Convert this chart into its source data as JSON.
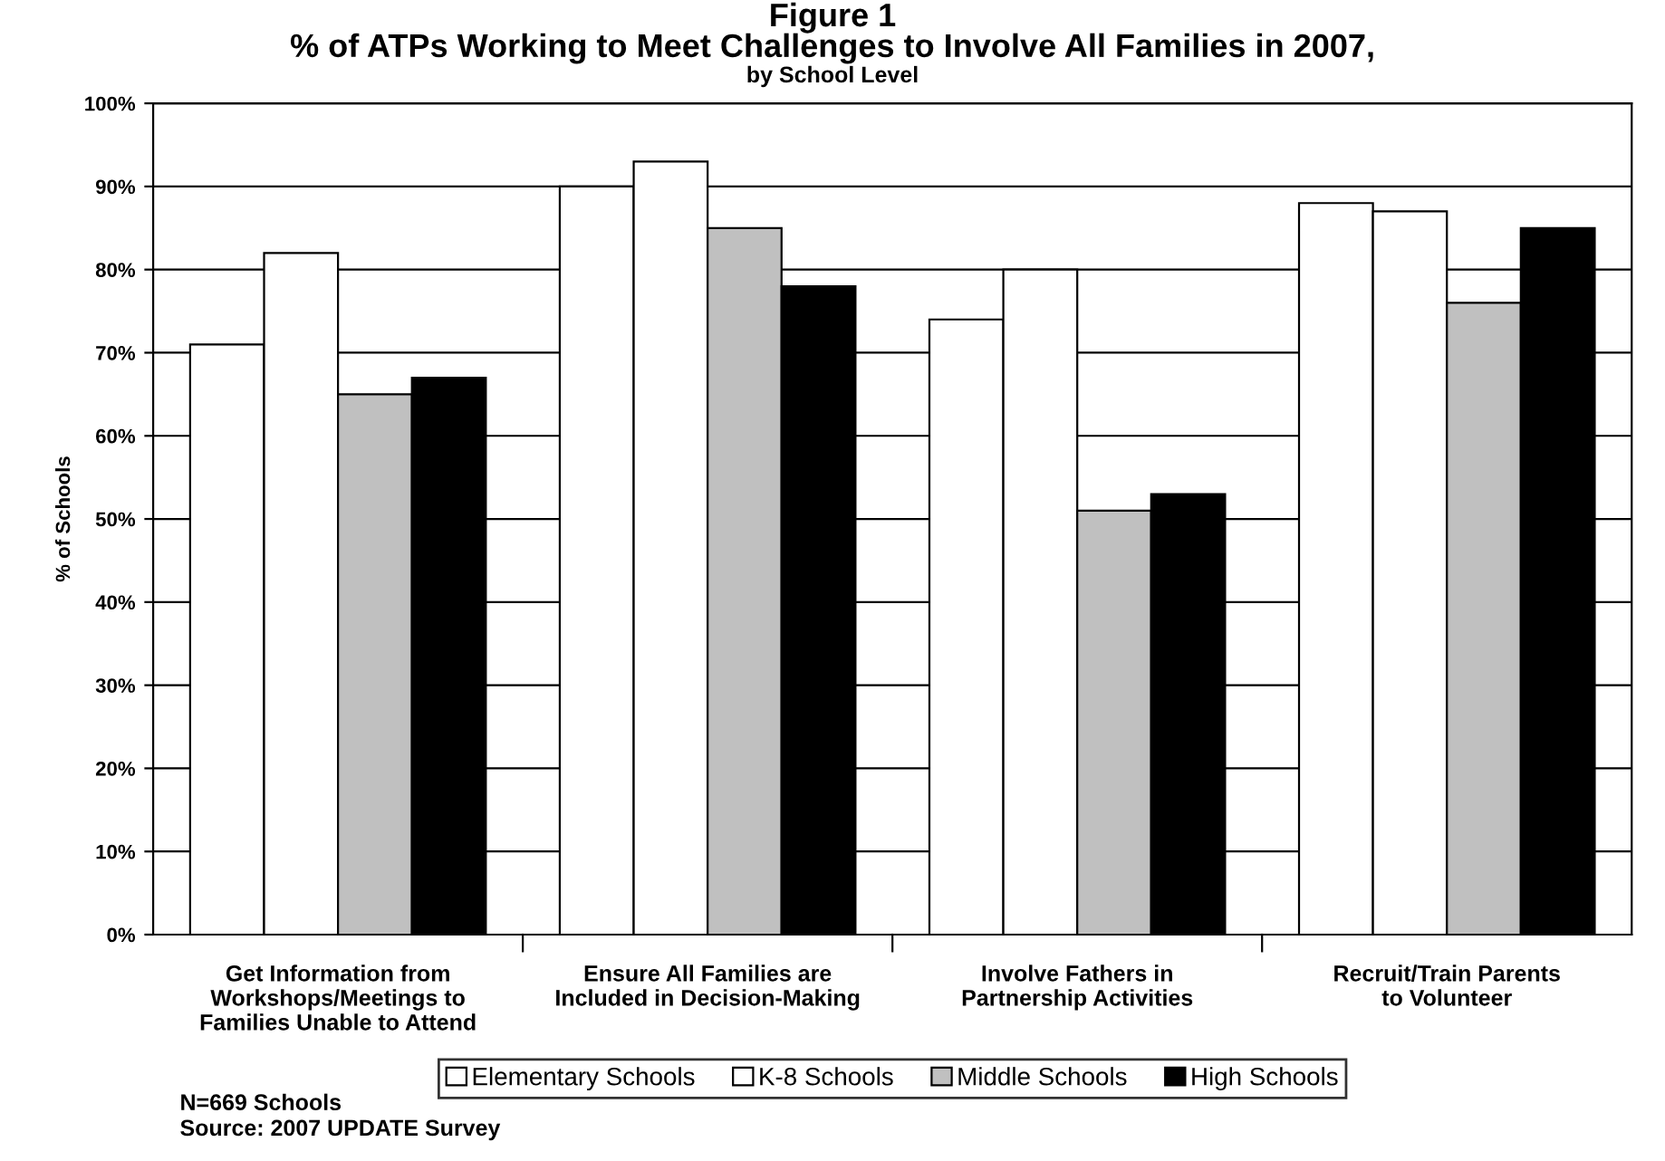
{
  "chart_data": {
    "type": "bar",
    "title": "Figure 1\n% of ATPs Working to Meet Challenges to Involve All Families in 2007,",
    "subtitle": "by School Level",
    "ylabel": "% of Schools",
    "categories": [
      "Get Information from\nWorkshops/Meetings to\nFamilies Unable to Attend",
      "Ensure All Families are\nIncluded in Decision-Making",
      "Involve Fathers in\nPartnership Activities",
      "Recruit/Train Parents\nto Volunteer"
    ],
    "series": [
      {
        "name": "Elementary Schools",
        "color": "#ffffff",
        "values": [
          71,
          90,
          74,
          88
        ]
      },
      {
        "name": "K-8 Schools",
        "color": "#ffffff",
        "values": [
          82,
          93,
          80,
          87
        ]
      },
      {
        "name": "Middle Schools",
        "color": "#c0c0c0",
        "values": [
          65,
          85,
          51,
          76
        ]
      },
      {
        "name": "High Schools",
        "color": "#000000",
        "values": [
          67,
          78,
          53,
          85
        ]
      }
    ],
    "ylim": [
      0,
      100
    ],
    "yticks": [
      {
        "value": 0,
        "label": "0%"
      },
      {
        "value": 10,
        "label": "10%"
      },
      {
        "value": 20,
        "label": "20%"
      },
      {
        "value": 30,
        "label": "30%"
      },
      {
        "value": 40,
        "label": "40%"
      },
      {
        "value": 50,
        "label": "50%"
      },
      {
        "value": 60,
        "label": "60%"
      },
      {
        "value": 70,
        "label": "70%"
      },
      {
        "value": 80,
        "label": "80%"
      },
      {
        "value": 90,
        "label": "90%"
      },
      {
        "value": 100,
        "label": "100%"
      }
    ],
    "grid": "y",
    "legend": "bottom",
    "annotations": [
      "N=669 Schools",
      "Source: 2007 UPDATE Survey"
    ]
  }
}
